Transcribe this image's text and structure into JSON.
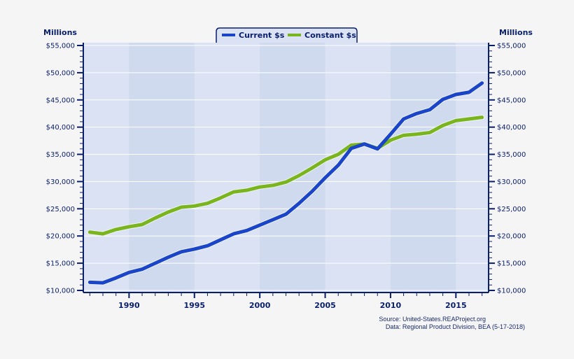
{
  "chart_data": {
    "type": "line",
    "ylabel_left": "Millions",
    "ylabel_right": "Millions",
    "x": [
      1987,
      1988,
      1989,
      1990,
      1991,
      1992,
      1993,
      1994,
      1995,
      1996,
      1997,
      1998,
      1999,
      2000,
      2001,
      2002,
      2003,
      2004,
      2005,
      2006,
      2007,
      2008,
      2009,
      2010,
      2011,
      2012,
      2013,
      2014,
      2015,
      2016,
      2017
    ],
    "series": [
      {
        "name": "Current $s",
        "color": "#1a45c8",
        "values": [
          11500,
          11400,
          12300,
          13300,
          13900,
          15000,
          16100,
          17100,
          17600,
          18200,
          19300,
          20400,
          21000,
          22000,
          23000,
          24000,
          26000,
          28200,
          30700,
          33000,
          36100,
          36900,
          36000,
          38700,
          41500,
          42500,
          43200,
          45100,
          46000,
          46400,
          48100
        ]
      },
      {
        "name": "Constant $s",
        "color": "#7ab51d",
        "values": [
          20700,
          20400,
          21200,
          21700,
          22100,
          23300,
          24400,
          25300,
          25500,
          26000,
          27000,
          28100,
          28400,
          29000,
          29300,
          29900,
          31100,
          32500,
          34000,
          35000,
          36700,
          36900,
          36100,
          37600,
          38500,
          38700,
          39000,
          40300,
          41200,
          41500,
          41800
        ]
      }
    ],
    "xlim": [
      1986.5,
      2017.5
    ],
    "ylim": [
      10000,
      55000
    ],
    "x_ticks": [
      "1990",
      "1995",
      "2000",
      "2005",
      "2010",
      "2015"
    ],
    "y_ticks": [
      "$10,000",
      "$15,000",
      "$20,000",
      "$25,000",
      "$30,000",
      "$35,000",
      "$40,000",
      "$45,000",
      "$50,000",
      "$55,000"
    ],
    "grid": true,
    "legend": "top-center",
    "shaded_bands": [
      [
        1990,
        1995
      ],
      [
        2000,
        2005
      ],
      [
        2010,
        2015
      ]
    ],
    "colors": {
      "plot_bg": "#dae2f3",
      "band": "#cfdaee",
      "axis": "#0a1f6b"
    }
  },
  "source_line1": "Source: United-States.REAProject.org",
  "source_line2": "Data: Regional Product Division, BEA (5-17-2018)"
}
